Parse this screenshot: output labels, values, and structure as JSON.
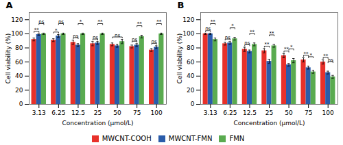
{
  "chart_data": [
    {
      "type": "bar",
      "title": "A",
      "xlabel": "Concentration (μmol/L)",
      "ylabel": "Cell viability (%)",
      "categories": [
        "3.13",
        "6.25",
        "12.5",
        "25",
        "50",
        "75",
        "100"
      ],
      "series": [
        {
          "name": "MWCNT-COOH",
          "color": "#e8312a",
          "values": [
            92,
            91,
            88,
            86,
            85,
            82,
            77
          ],
          "errors": [
            2,
            2,
            3,
            3,
            2,
            2,
            2
          ]
        },
        {
          "name": "MWCNT-FMN",
          "color": "#2a5caa",
          "values": [
            99,
            97,
            84,
            87,
            83,
            84,
            81
          ],
          "errors": [
            1,
            2,
            2,
            2,
            2,
            2,
            2
          ]
        },
        {
          "name": "FMN",
          "color": "#5aab50",
          "values": [
            100,
            100,
            100,
            100,
            89,
            96,
            100
          ],
          "errors": [
            1,
            1,
            1,
            1,
            3,
            2,
            1
          ]
        }
      ],
      "annotations": [
        {
          "category": "3.13",
          "between": [
            "MWCNT-COOH",
            "MWCNT-FMN"
          ],
          "text": "**"
        },
        {
          "category": "3.13",
          "between": [
            "MWCNT-FMN",
            "FMN"
          ],
          "text": "ns"
        },
        {
          "category": "6.25",
          "between": [
            "MWCNT-COOH",
            "MWCNT-FMN"
          ],
          "text": "*"
        },
        {
          "category": "6.25",
          "between": [
            "MWCNT-FMN",
            "FMN"
          ],
          "text": "ns"
        },
        {
          "category": "12.5",
          "between": [
            "MWCNT-COOH",
            "MWCNT-FMN"
          ],
          "text": "ns"
        },
        {
          "category": "12.5",
          "between": [
            "MWCNT-FMN",
            "FMN"
          ],
          "text": "*"
        },
        {
          "category": "25",
          "between": [
            "MWCNT-COOH",
            "MWCNT-FMN"
          ],
          "text": "ns"
        },
        {
          "category": "25",
          "between": [
            "MWCNT-FMN",
            "FMN"
          ],
          "text": "**"
        },
        {
          "category": "50",
          "between": [
            "MWCNT-COOH",
            "FMN"
          ],
          "text": "ns"
        },
        {
          "category": "75",
          "between": [
            "MWCNT-COOH",
            "MWCNT-FMN"
          ],
          "text": "ns"
        },
        {
          "category": "75",
          "between": [
            "MWCNT-FMN",
            "FMN"
          ],
          "text": "**"
        },
        {
          "category": "100",
          "between": [
            "MWCNT-COOH",
            "MWCNT-FMN"
          ],
          "text": "ns"
        },
        {
          "category": "100",
          "between": [
            "MWCNT-FMN",
            "FMN"
          ],
          "text": "**"
        }
      ],
      "ylim": [
        0,
        130
      ],
      "yticks": [
        0,
        20,
        40,
        60,
        80,
        100,
        120
      ],
      "legend": "bottom"
    },
    {
      "type": "bar",
      "title": "B",
      "xlabel": "Concentration (μmol/L)",
      "ylabel": "Cell viability (%)",
      "categories": [
        "3.13",
        "6.25",
        "12.5",
        "25",
        "50",
        "75",
        "100"
      ],
      "series": [
        {
          "name": "MWCNT-COOH",
          "color": "#e8312a",
          "values": [
            100,
            86,
            78,
            76,
            69,
            63,
            60
          ],
          "errors": [
            1,
            2,
            3,
            3,
            3,
            3,
            3
          ]
        },
        {
          "name": "MWCNT-FMN",
          "color": "#2a5caa",
          "values": [
            100,
            87,
            75,
            61,
            56,
            52,
            45
          ],
          "errors": [
            1,
            2,
            2,
            3,
            2,
            2,
            2
          ]
        },
        {
          "name": "FMN",
          "color": "#5aab50",
          "values": [
            92,
            93,
            85,
            83,
            62,
            46,
            39
          ],
          "errors": [
            2,
            2,
            2,
            2,
            3,
            2,
            2
          ]
        }
      ],
      "annotations": [
        {
          "category": "3.13",
          "between": [
            "MWCNT-COOH",
            "MWCNT-FMN"
          ],
          "text": "ns"
        },
        {
          "category": "3.13",
          "between": [
            "MWCNT-FMN",
            "FMN"
          ],
          "text": "**"
        },
        {
          "category": "6.25",
          "between": [
            "MWCNT-COOH",
            "MWCNT-FMN"
          ],
          "text": "ns"
        },
        {
          "category": "6.25",
          "between": [
            "MWCNT-FMN",
            "FMN"
          ],
          "text": "*"
        },
        {
          "category": "12.5",
          "between": [
            "MWCNT-COOH",
            "MWCNT-FMN"
          ],
          "text": "ns"
        },
        {
          "category": "12.5",
          "between": [
            "MWCNT-FMN",
            "FMN"
          ],
          "text": "**"
        },
        {
          "category": "25",
          "between": [
            "MWCNT-COOH",
            "MWCNT-FMN"
          ],
          "text": "**"
        },
        {
          "category": "25",
          "between": [
            "MWCNT-FMN",
            "FMN"
          ],
          "text": "**"
        },
        {
          "category": "50",
          "between": [
            "MWCNT-COOH",
            "MWCNT-FMN"
          ],
          "text": "**"
        },
        {
          "category": "50",
          "between": [
            "MWCNT-FMN",
            "FMN"
          ],
          "text": "*"
        },
        {
          "category": "75",
          "between": [
            "MWCNT-COOH",
            "MWCNT-FMN"
          ],
          "text": "**"
        },
        {
          "category": "75",
          "between": [
            "MWCNT-FMN",
            "FMN"
          ],
          "text": "*"
        },
        {
          "category": "100",
          "between": [
            "MWCNT-COOH",
            "MWCNT-FMN"
          ],
          "text": "**"
        },
        {
          "category": "100",
          "between": [
            "MWCNT-FMN",
            "FMN"
          ],
          "text": "ns"
        }
      ],
      "ylim": [
        0,
        130
      ],
      "yticks": [
        0,
        20,
        40,
        60,
        80,
        100,
        120
      ],
      "legend": "bottom"
    }
  ]
}
